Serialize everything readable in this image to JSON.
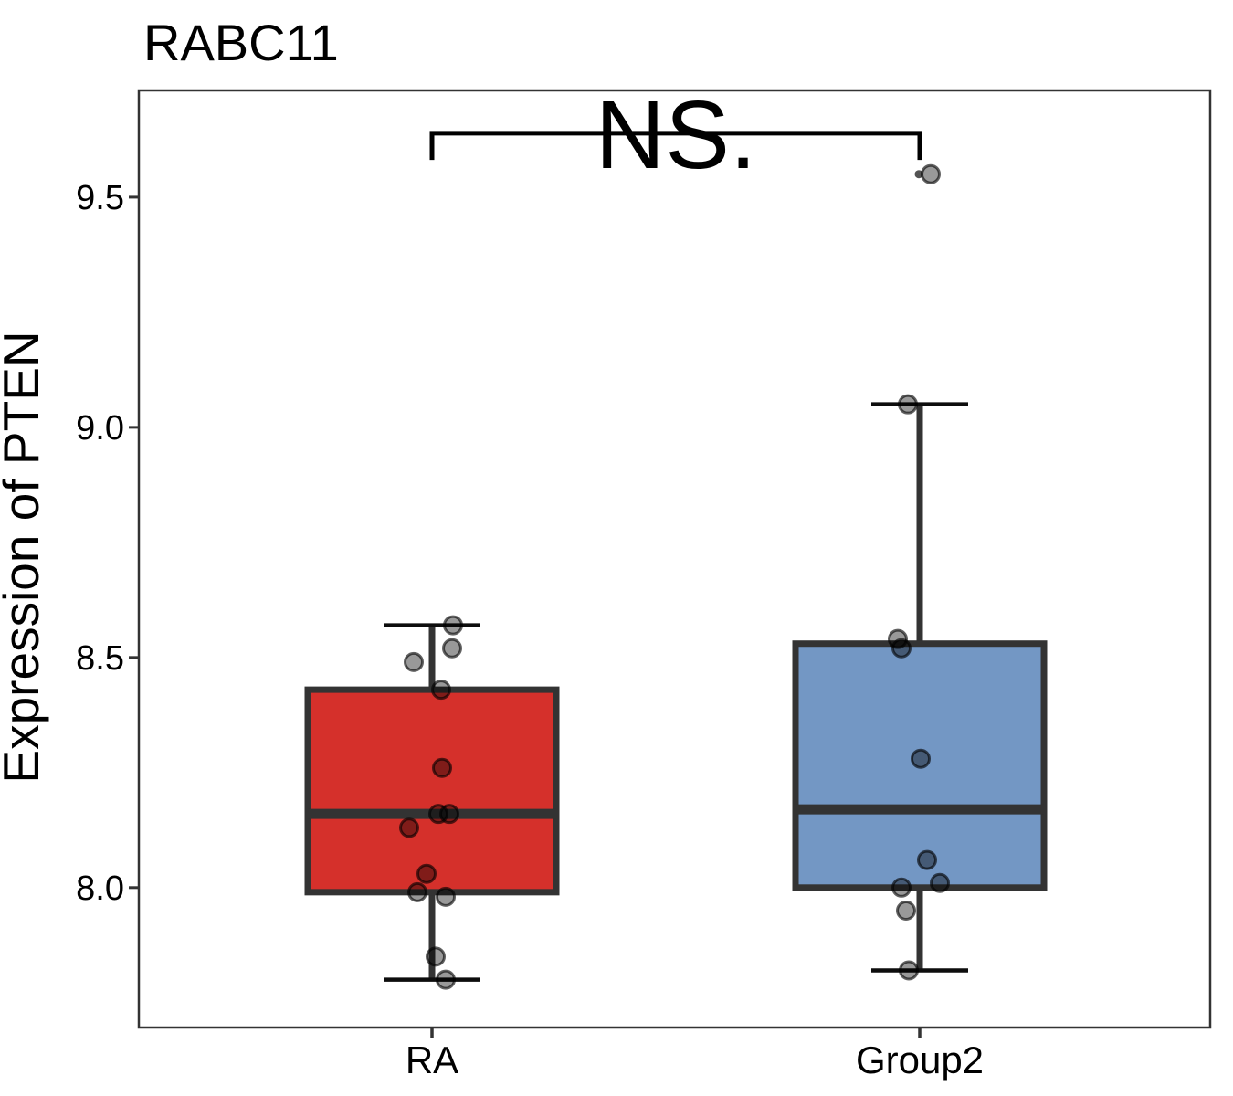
{
  "title": "RABC11",
  "axes": {
    "y_label": "Expression of PTEN",
    "y_tick_labels": [
      "8.0",
      "8.5",
      "9.0",
      "9.5"
    ],
    "y_tick_values": [
      8.0,
      8.5,
      9.0,
      9.5
    ],
    "x_categories": [
      "RA",
      "Group2"
    ],
    "y_range": [
      7.696,
      9.732
    ]
  },
  "annotation": {
    "text": "NS.",
    "bracket_top": 9.639,
    "bracket_drop_to": 9.581
  },
  "style": {
    "panel_stroke": "#333333",
    "box_stroke": "#333333",
    "cap_stroke": "#0d0d0d",
    "bracket_stroke": "#000000",
    "tick_stroke": "#333333",
    "point_fill": "rgba(0,0,0,0.40)",
    "point_stroke": "rgba(0,0,0,0.62)",
    "outlier_fill": "rgba(40,40,40,0.8)"
  },
  "chart_data": {
    "type": "boxplot",
    "title": "RABC11",
    "ylabel": "Expression of PTEN",
    "xlabel": "",
    "categories": [
      "RA",
      "Group2"
    ],
    "ylim": [
      7.696,
      9.732
    ],
    "grid": false,
    "legend": "none",
    "significance": {
      "label": "NS.",
      "between": [
        "RA",
        "Group2"
      ]
    },
    "series": [
      {
        "name": "RA",
        "fill": "#D5302B",
        "stats": {
          "whisker_low": 7.8,
          "q1": 7.99,
          "median": 8.16,
          "q3": 8.43,
          "whisker_high": 8.57
        },
        "outliers": [],
        "points": [
          {
            "v": 8.57,
            "dx": 23
          },
          {
            "v": 8.52,
            "dx": 22
          },
          {
            "v": 8.49,
            "dx": -20
          },
          {
            "v": 8.43,
            "dx": 10
          },
          {
            "v": 8.26,
            "dx": 11
          },
          {
            "v": 8.16,
            "dx": 19
          },
          {
            "v": 8.16,
            "dx": 7
          },
          {
            "v": 8.13,
            "dx": -25
          },
          {
            "v": 8.03,
            "dx": -6
          },
          {
            "v": 7.99,
            "dx": -16
          },
          {
            "v": 7.98,
            "dx": 15
          },
          {
            "v": 7.85,
            "dx": 4
          },
          {
            "v": 7.8,
            "dx": 15
          }
        ]
      },
      {
        "name": "Group2",
        "fill": "#7397C4",
        "stats": {
          "whisker_low": 7.82,
          "q1": 8.0,
          "median": 8.17,
          "q3": 8.53,
          "whisker_high": 9.05
        },
        "outliers": [
          9.55
        ],
        "points": [
          {
            "v": 9.55,
            "dx": 12
          },
          {
            "v": 9.05,
            "dx": -13
          },
          {
            "v": 8.54,
            "dx": -24
          },
          {
            "v": 8.52,
            "dx": -20
          },
          {
            "v": 8.28,
            "dx": 1
          },
          {
            "v": 8.06,
            "dx": 8
          },
          {
            "v": 8.01,
            "dx": 22
          },
          {
            "v": 8.0,
            "dx": -20
          },
          {
            "v": 7.95,
            "dx": -15
          },
          {
            "v": 7.82,
            "dx": -12
          }
        ]
      }
    ]
  }
}
